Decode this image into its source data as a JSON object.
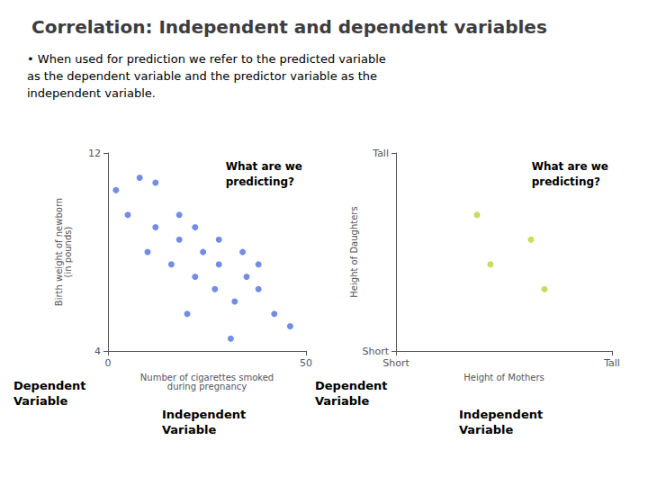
{
  "title": "Correlation: Independent and dependent variables",
  "subtitle": "• When used for prediction we refer to the predicted variable\nas the dependent variable and the predictor variable as the\nindependent variable.",
  "chart_data": [
    {
      "type": "scatter",
      "x": [
        2,
        8,
        12,
        18,
        22,
        28,
        34,
        38,
        5,
        12,
        18,
        24,
        28,
        35,
        38,
        10,
        16,
        22,
        27,
        32,
        42,
        46,
        20,
        31
      ],
      "values": [
        10.5,
        11.0,
        10.8,
        9.5,
        9.0,
        8.5,
        8.0,
        7.5,
        9.5,
        9.0,
        8.5,
        8.0,
        7.5,
        7.0,
        6.5,
        8.0,
        7.5,
        7.0,
        6.5,
        6.0,
        5.5,
        5.0,
        5.5,
        4.5
      ],
      "xlabel": "Number of cigarettes smoked\nduring pregnancy",
      "ylabel": "Birth weight of newborn\n(in pounds)",
      "xlim": [
        0,
        50
      ],
      "ylim": [
        4,
        12
      ],
      "xticks": [
        0,
        50
      ],
      "yticks": [
        4,
        12
      ],
      "grid": false,
      "annotations": [
        "What are we\npredicting?",
        "Dependent\nVariable",
        "Independent\nVariable"
      ]
    },
    {
      "type": "scatter",
      "x": [
        3,
        5,
        3.5,
        5.5
      ],
      "values": [
        5.5,
        4.5,
        3.5,
        2.5
      ],
      "xlabel": "Height of Mothers",
      "ylabel": "Height of Daughters",
      "xlim": [
        0,
        8
      ],
      "ylim": [
        0,
        8
      ],
      "xticks": [
        {
          "value": 0,
          "label": "Short"
        },
        {
          "value": 8,
          "label": "Tall"
        }
      ],
      "yticks": [
        {
          "value": 0,
          "label": "Short"
        },
        {
          "value": 8,
          "label": "Tall"
        }
      ],
      "grid": false,
      "annotations": [
        "What are we\npredicting?",
        "Dependent\nVariable",
        "Independent\nVariable"
      ]
    }
  ]
}
